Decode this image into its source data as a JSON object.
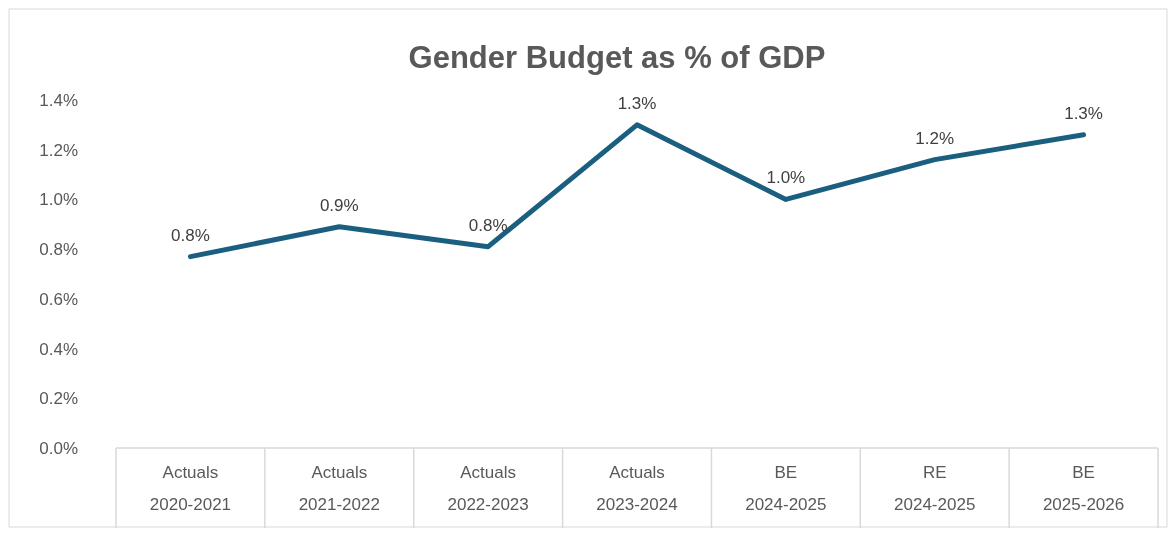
{
  "chart_data": {
    "type": "line",
    "title": "Gender Budget as % of GDP",
    "categories": [
      "Actuals\n2020-2021",
      "Actuals\n2021-2022",
      "Actuals\n2022-2023",
      "Actuals\n2023-2024",
      "BE\n2024-2025",
      "RE\n2024-2025",
      "BE\n2025-2026"
    ],
    "series": [
      {
        "color": "#1b5f80",
        "values": [
          0.77,
          0.89,
          0.81,
          1.3,
          1.0,
          1.16,
          1.26
        ],
        "value_labels": [
          "0.8%",
          "0.9%",
          "0.8%",
          "1.3%",
          "1.0%",
          "1.2%",
          "1.3%"
        ]
      }
    ],
    "ylim": [
      0,
      1.4
    ],
    "yticks": [
      {
        "value": 0,
        "label": "0.0%"
      },
      {
        "value": 0.2,
        "label": "0.2%"
      },
      {
        "value": 0.4,
        "label": "0.4%"
      },
      {
        "value": 0.6,
        "label": "0.6%"
      },
      {
        "value": 0.8,
        "label": "0.8%"
      },
      {
        "value": 1.0,
        "label": "1.0%"
      },
      {
        "value": 1.2,
        "label": "1.2%"
      },
      {
        "value": 1.4,
        "label": "1.4%"
      }
    ],
    "grid": false,
    "marker": "none",
    "line_style": "solid"
  }
}
